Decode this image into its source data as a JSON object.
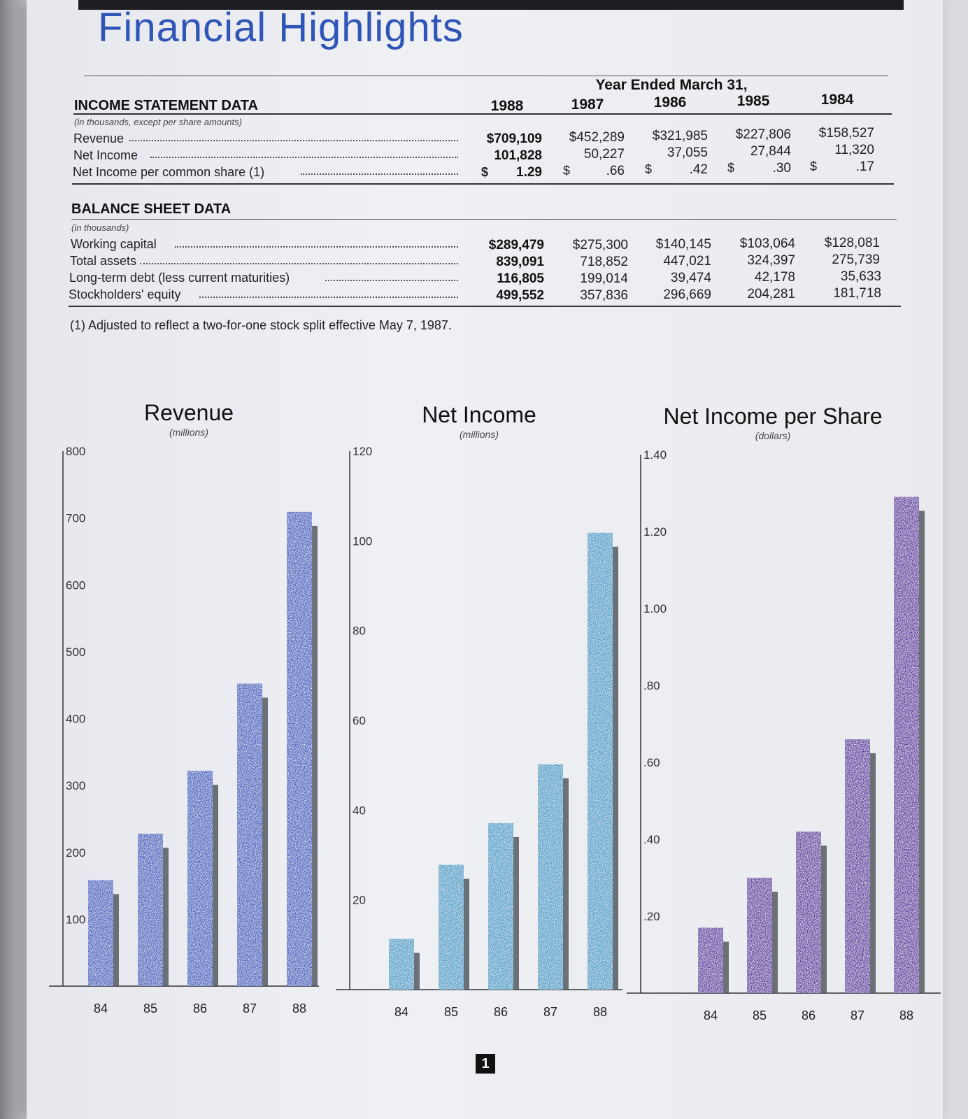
{
  "title": "Financial Highlights",
  "header": {
    "year_caption": "Year Ended March 31,",
    "years": [
      "1988",
      "1987",
      "1986",
      "1985",
      "1984"
    ]
  },
  "income": {
    "heading": "INCOME STATEMENT DATA",
    "note": "(in thousands, except per share amounts)",
    "rows": [
      {
        "label": "Revenue",
        "values": [
          "$709,109",
          "$452,289",
          "$321,985",
          "$227,806",
          "$158,527"
        ]
      },
      {
        "label": "Net Income",
        "values": [
          "101,828",
          "50,227",
          "37,055",
          "27,844",
          "11,320"
        ]
      },
      {
        "label": "Net Income per common share (1)",
        "values": [
          "1.29",
          ".66",
          ".42",
          ".30",
          ".17"
        ],
        "currency": "$"
      }
    ]
  },
  "balance": {
    "heading": "BALANCE SHEET DATA",
    "note": "(in thousands)",
    "rows": [
      {
        "label": "Working capital",
        "values": [
          "$289,479",
          "$275,300",
          "$140,145",
          "$103,064",
          "$128,081"
        ]
      },
      {
        "label": "Total assets",
        "values": [
          "839,091",
          "718,852",
          "447,021",
          "324,397",
          "275,739"
        ]
      },
      {
        "label": "Long-term debt (less current maturities)",
        "values": [
          "116,805",
          "199,014",
          "39,474",
          "42,178",
          "35,633"
        ]
      },
      {
        "label": "Stockholders' equity",
        "values": [
          "499,552",
          "357,836",
          "296,669",
          "204,281",
          "181,718"
        ]
      }
    ]
  },
  "footnote": "(1) Adjusted to reflect a two-for-one stock split effective May 7, 1987.",
  "page_number": "1",
  "colors": {
    "title": "#2f55b8",
    "revenue": "#3a5bc0",
    "net_income": "#3f9cc8",
    "per_share": "#5a2fa0",
    "shadow": "#555a60"
  },
  "chart_data": [
    {
      "type": "bar",
      "title": "Revenue",
      "unit": "(millions)",
      "categories": [
        "84",
        "85",
        "86",
        "87",
        "88"
      ],
      "values": [
        158.5,
        227.8,
        322.0,
        452.3,
        709.1
      ],
      "yticks": [
        "100",
        "200",
        "300",
        "400",
        "500",
        "600",
        "700",
        "800"
      ],
      "ylim": [
        0,
        800
      ]
    },
    {
      "type": "bar",
      "title": "Net Income",
      "unit": "(millions)",
      "categories": [
        "84",
        "85",
        "86",
        "87",
        "88"
      ],
      "values": [
        11.3,
        27.8,
        37.1,
        50.2,
        101.8
      ],
      "yticks": [
        "20",
        "40",
        "60",
        "80",
        "100",
        "120"
      ],
      "ylim": [
        0,
        120
      ]
    },
    {
      "type": "bar",
      "title": "Net Income per Share",
      "unit": "(dollars)",
      "categories": [
        "84",
        "85",
        "86",
        "87",
        "88"
      ],
      "values": [
        0.17,
        0.3,
        0.42,
        0.66,
        1.29
      ],
      "yticks": [
        ".20",
        ".40",
        ".60",
        ".80",
        "1.00",
        "1.20",
        "1.40"
      ],
      "ylim": [
        0,
        1.4
      ]
    }
  ]
}
